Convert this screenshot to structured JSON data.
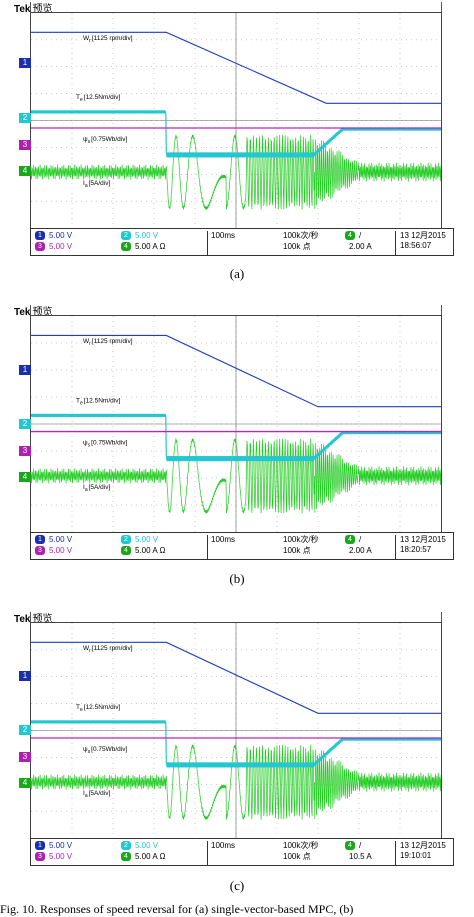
{
  "brand": "Tek",
  "mode": "预览",
  "labels": {
    "speed": "W",
    "speed_sub": "r",
    "speed_scale": "[1125 rpm/div]",
    "torque": "T",
    "torque_sub": "e",
    "torque_scale": "[12.5Nm/div]",
    "flux": "ψ",
    "flux_sub": "s",
    "flux_scale": "[0.75Wb/div]",
    "current": "I",
    "current_sub": "a",
    "current_scale": "[5A/div]"
  },
  "colors": {
    "speed": "#1f3fbf",
    "torque": "#22c7cf",
    "flux": "#c020c0",
    "current": "#22cc22",
    "ch1": "#1a2fa8",
    "ch2": "#22c7cf",
    "ch3": "#b020b0",
    "ch4": "#1aa81a"
  },
  "panels": [
    {
      "caption": "(a)",
      "ch1": "5.00 V",
      "ch2": "5.00 V",
      "ch3": "5.00 V",
      "ch4": "5.00 A",
      "timebase": "100ms",
      "rate": "100k次/秒",
      "points": "100k 点",
      "trig_level": "2.00 A",
      "date": "13 12月2015",
      "time": "18:56:07"
    },
    {
      "caption": "(b)",
      "ch1": "5.00 V",
      "ch2": "5.00 V",
      "ch3": "5.00 V",
      "ch4": "5.00 A",
      "timebase": "100ms",
      "rate": "100k次/秒",
      "points": "100k 点",
      "trig_level": "2.00 A",
      "date": "13 12月2015",
      "time": "18:20:57"
    },
    {
      "caption": "(c)",
      "ch1": "5.00 V",
      "ch2": "5.00 V",
      "ch3": "5.00 V",
      "ch4": "5.00 A",
      "timebase": "100ms",
      "rate": "100k次/秒",
      "points": "100k 点",
      "trig_level": "10.5 A",
      "date": "13 12月2015",
      "time": "19:10:01"
    }
  ],
  "figure_caption": "Fig. 10.   Responses of speed reversal for (a) single-vector-based MPC, (b)",
  "chart_data": [
    {
      "type": "line",
      "title": "(a)",
      "x_divisions": 10,
      "time_per_div": "100ms",
      "series": [
        {
          "name": "W r [1125 rpm/div]",
          "points": [
            [
              0,
              1.0
            ],
            [
              3.3,
              1.0
            ],
            [
              7.2,
              -1.0
            ],
            [
              10,
              -1.0
            ]
          ]
        },
        {
          "name": "T e [12.5Nm/div]",
          "points": [
            [
              0,
              0.2
            ],
            [
              3.3,
              0.2
            ],
            [
              3.3,
              -0.5
            ],
            [
              7.0,
              -0.5
            ],
            [
              7.4,
              0.1
            ],
            [
              10,
              0.1
            ]
          ]
        },
        {
          "name": "ψs [0.75Wb/div]",
          "points": [
            [
              0,
              0.0
            ],
            [
              10,
              0.0
            ]
          ]
        },
        {
          "name": "I a [5A/div]",
          "points": [
            [
              0,
              0.5
            ],
            [
              3.3,
              0.5
            ],
            [
              3.3,
              3.0
            ],
            [
              7.0,
              3.0
            ],
            [
              8.0,
              0.5
            ],
            [
              10,
              0.5
            ]
          ]
        }
      ]
    },
    {
      "type": "line",
      "title": "(b)",
      "x_divisions": 10,
      "time_per_div": "100ms",
      "series": [
        {
          "name": "W r [1125 rpm/div]",
          "points": [
            [
              0,
              1.0
            ],
            [
              3.3,
              1.0
            ],
            [
              7.0,
              -1.0
            ],
            [
              10,
              -1.0
            ]
          ]
        },
        {
          "name": "T e [12.5Nm/div]",
          "points": [
            [
              0,
              0.2
            ],
            [
              3.3,
              0.2
            ],
            [
              3.3,
              -0.5
            ],
            [
              6.8,
              -0.5
            ],
            [
              7.3,
              0.1
            ],
            [
              10,
              0.1
            ]
          ]
        },
        {
          "name": "ψs [0.75Wb/div]",
          "points": [
            [
              0,
              0.0
            ],
            [
              10,
              0.0
            ]
          ]
        },
        {
          "name": "I a [5A/div]",
          "points": [
            [
              0,
              0.5
            ],
            [
              3.3,
              0.5
            ],
            [
              3.3,
              3.0
            ],
            [
              6.8,
              3.0
            ],
            [
              8.0,
              0.5
            ],
            [
              10,
              0.5
            ]
          ]
        }
      ]
    },
    {
      "type": "line",
      "title": "(c)",
      "x_divisions": 10,
      "time_per_div": "100ms",
      "series": [
        {
          "name": "W r [1125 rpm/div]",
          "points": [
            [
              0,
              1.0
            ],
            [
              3.3,
              1.0
            ],
            [
              7.0,
              -1.0
            ],
            [
              10,
              -1.0
            ]
          ]
        },
        {
          "name": "T e [12.5Nm/div]",
          "points": [
            [
              0,
              0.2
            ],
            [
              3.3,
              0.2
            ],
            [
              3.3,
              -0.5
            ],
            [
              6.8,
              -0.5
            ],
            [
              7.3,
              0.1
            ],
            [
              10,
              0.1
            ]
          ]
        },
        {
          "name": "ψs [0.75Wb/div]",
          "points": [
            [
              0,
              0.0
            ],
            [
              10,
              0.0
            ]
          ]
        },
        {
          "name": "I a [5A/div]",
          "points": [
            [
              0,
              0.5
            ],
            [
              3.3,
              0.5
            ],
            [
              3.3,
              3.0
            ],
            [
              6.8,
              3.0
            ],
            [
              8.0,
              0.5
            ],
            [
              10,
              0.5
            ]
          ]
        }
      ]
    }
  ]
}
